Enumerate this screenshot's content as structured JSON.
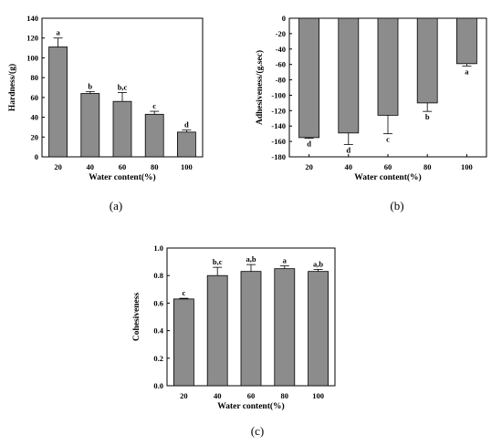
{
  "panel_labels": [
    "(a)",
    "(b)",
    "(c)"
  ],
  "chart_data": [
    {
      "type": "bar",
      "panel": "(a)",
      "categories": [
        "20",
        "40",
        "60",
        "80",
        "100"
      ],
      "values": [
        111,
        64,
        56,
        43,
        25
      ],
      "errors": [
        9,
        2,
        9,
        3,
        2
      ],
      "letters": [
        "a",
        "b",
        "b,c",
        "c",
        "d"
      ],
      "xlabel": "Water content(%)",
      "ylabel": "Hardness/(g)",
      "ylim": [
        0,
        140
      ],
      "yticks": [
        0,
        20,
        40,
        60,
        80,
        100,
        120,
        140
      ],
      "bar_color": "#8c8c8c"
    },
    {
      "type": "bar",
      "panel": "(b)",
      "categories": [
        "20",
        "40",
        "60",
        "80",
        "100"
      ],
      "values": [
        -155,
        -149,
        -126,
        -110,
        -59
      ],
      "errors": [
        1,
        15,
        24,
        11,
        3
      ],
      "letters": [
        "d",
        "d",
        "c",
        "b",
        "a"
      ],
      "xlabel": "Water content(%)",
      "ylabel": "Adhesiveness/(g.sec)",
      "ylim": [
        -180,
        0
      ],
      "yticks": [
        0,
        -20,
        -40,
        -60,
        -80,
        -100,
        -120,
        -140,
        -160,
        -180
      ],
      "bar_color": "#8c8c8c"
    },
    {
      "type": "bar",
      "panel": "(c)",
      "categories": [
        "20",
        "40",
        "60",
        "80",
        "100"
      ],
      "values": [
        0.63,
        0.8,
        0.83,
        0.85,
        0.83
      ],
      "errors": [
        0.005,
        0.06,
        0.05,
        0.02,
        0.015
      ],
      "letters": [
        "c",
        "b,c",
        "a,b",
        "a",
        "a,b"
      ],
      "xlabel": "Water content(%)",
      "ylabel": "Cohesiveness",
      "ylim": [
        0,
        1.0
      ],
      "yticks": [
        0.0,
        0.2,
        0.4,
        0.6,
        0.8,
        1.0
      ],
      "bar_color": "#8c8c8c"
    }
  ]
}
